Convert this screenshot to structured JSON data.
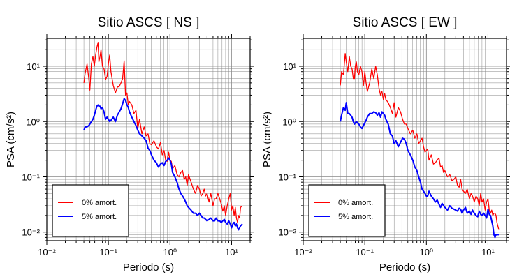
{
  "chart_data": [
    {
      "type": "line",
      "title": "Sitio ASCS [ NS ]",
      "xlabel": "Periodo (s)",
      "ylabel": "PSA (cm/s²)",
      "xscale": "log",
      "yscale": "log",
      "xlim": [
        0.01,
        20
      ],
      "ylim": [
        0.007,
        32
      ],
      "grid": true,
      "legend_position": "bottom-left",
      "xticks": [
        {
          "value": 0.01,
          "label": "10⁻²"
        },
        {
          "value": 0.1,
          "label": "10⁻¹"
        },
        {
          "value": 1,
          "label": "10⁰"
        },
        {
          "value": 10,
          "label": "10¹"
        }
      ],
      "yticks": [
        {
          "value": 0.01,
          "label": "10⁻²"
        },
        {
          "value": 0.1,
          "label": "10⁻¹"
        },
        {
          "value": 1,
          "label": "10⁰"
        },
        {
          "value": 10,
          "label": "10¹"
        }
      ],
      "series": [
        {
          "name": "0% amort.",
          "color": "#ff0000",
          "x": [
            0.04,
            0.042,
            0.045,
            0.048,
            0.05,
            0.053,
            0.056,
            0.059,
            0.062,
            0.065,
            0.068,
            0.07,
            0.073,
            0.076,
            0.08,
            0.085,
            0.09,
            0.095,
            0.1,
            0.105,
            0.11,
            0.12,
            0.13,
            0.14,
            0.15,
            0.16,
            0.17,
            0.18,
            0.19,
            0.2,
            0.21,
            0.22,
            0.24,
            0.26,
            0.28,
            0.3,
            0.32,
            0.35,
            0.38,
            0.41,
            0.44,
            0.47,
            0.5,
            0.55,
            0.6,
            0.65,
            0.7,
            0.75,
            0.8,
            0.85,
            0.9,
            0.95,
            1.0,
            1.05,
            1.1,
            1.2,
            1.3,
            1.4,
            1.5,
            1.6,
            1.7,
            1.8,
            1.9,
            2.0,
            2.2,
            2.4,
            2.6,
            2.8,
            3.0,
            3.2,
            3.4,
            3.6,
            3.8,
            4.0,
            4.3,
            4.6,
            5.0,
            5.3,
            5.6,
            6.0,
            6.4,
            6.8,
            7.2,
            7.6,
            8.0,
            8.5,
            9.0,
            9.5,
            10,
            10.5,
            11,
            11.5,
            12,
            12.5,
            13,
            13.5,
            14,
            15
          ],
          "y": [
            5,
            7.5,
            11,
            6,
            3.7,
            11,
            15,
            10,
            16,
            22,
            27,
            12,
            15,
            20,
            10,
            9,
            5.8,
            6.5,
            11,
            16,
            8,
            4.5,
            3.3,
            4.2,
            4.3,
            5,
            6,
            12.5,
            3,
            3.3,
            2,
            2.3,
            2,
            1.4,
            1.6,
            0.75,
            1.1,
            0.6,
            0.8,
            0.55,
            0.6,
            0.4,
            0.38,
            0.45,
            0.35,
            0.32,
            0.42,
            0.25,
            0.3,
            0.2,
            0.19,
            0.28,
            0.2,
            0.19,
            0.14,
            0.16,
            0.11,
            0.1,
            0.12,
            0.13,
            0.09,
            0.1,
            0.07,
            0.11,
            0.08,
            0.06,
            0.05,
            0.07,
            0.06,
            0.045,
            0.05,
            0.06,
            0.045,
            0.05,
            0.035,
            0.05,
            0.03,
            0.04,
            0.04,
            0.05,
            0.04,
            0.032,
            0.024,
            0.03,
            0.02,
            0.03,
            0.04,
            0.05,
            0.025,
            0.03,
            0.02,
            0.028,
            0.018,
            0.015,
            0.02,
            0.018,
            0.028,
            0.03
          ]
        },
        {
          "name": "5% amort.",
          "color": "#0000ff",
          "x": [
            0.04,
            0.042,
            0.045,
            0.048,
            0.05,
            0.053,
            0.056,
            0.059,
            0.062,
            0.065,
            0.068,
            0.07,
            0.073,
            0.076,
            0.08,
            0.085,
            0.09,
            0.095,
            0.1,
            0.105,
            0.11,
            0.12,
            0.13,
            0.14,
            0.15,
            0.16,
            0.17,
            0.18,
            0.19,
            0.2,
            0.21,
            0.22,
            0.24,
            0.26,
            0.28,
            0.3,
            0.32,
            0.35,
            0.38,
            0.41,
            0.44,
            0.47,
            0.5,
            0.55,
            0.6,
            0.65,
            0.7,
            0.75,
            0.8,
            0.85,
            0.9,
            0.95,
            1.0,
            1.05,
            1.1,
            1.2,
            1.3,
            1.4,
            1.5,
            1.6,
            1.7,
            1.8,
            1.9,
            2.0,
            2.2,
            2.4,
            2.6,
            2.8,
            3.0,
            3.2,
            3.4,
            3.6,
            3.8,
            4.0,
            4.3,
            4.6,
            5.0,
            5.3,
            5.6,
            6.0,
            6.4,
            6.8,
            7.2,
            7.6,
            8.0,
            8.5,
            9.0,
            9.5,
            10,
            10.5,
            11,
            11.5,
            12,
            12.5,
            13,
            13.5,
            14,
            15
          ],
          "y": [
            0.7,
            0.8,
            0.8,
            0.85,
            0.9,
            1.0,
            1.1,
            1.3,
            1.6,
            1.9,
            2.0,
            1.9,
            1.9,
            1.7,
            1.8,
            1.5,
            1.1,
            1.2,
            1.1,
            1.0,
            1.05,
            1.2,
            1.0,
            1.3,
            1.5,
            1.7,
            2.1,
            2.6,
            2.4,
            2.0,
            1.8,
            1.5,
            1.2,
            1.0,
            0.85,
            0.7,
            0.6,
            0.55,
            0.5,
            0.45,
            0.33,
            0.3,
            0.25,
            0.2,
            0.18,
            0.15,
            0.17,
            0.18,
            0.16,
            0.19,
            0.2,
            0.22,
            0.2,
            0.17,
            0.12,
            0.1,
            0.08,
            0.06,
            0.05,
            0.045,
            0.04,
            0.035,
            0.03,
            0.028,
            0.025,
            0.022,
            0.022,
            0.02,
            0.022,
            0.02,
            0.018,
            0.018,
            0.017,
            0.016,
            0.017,
            0.018,
            0.016,
            0.016,
            0.018,
            0.016,
            0.016,
            0.015,
            0.016,
            0.017,
            0.015,
            0.014,
            0.016,
            0.014,
            0.012,
            0.014,
            0.015,
            0.013,
            0.014,
            0.012,
            0.011,
            0.012,
            0.013,
            0.014
          ]
        }
      ]
    },
    {
      "type": "line",
      "title": "Sitio ASCS [ EW ]",
      "xlabel": "Periodo (s)",
      "ylabel": "PSA (cm/s²)",
      "xscale": "log",
      "yscale": "log",
      "xlim": [
        0.01,
        20
      ],
      "ylim": [
        0.007,
        32
      ],
      "grid": true,
      "legend_position": "bottom-left",
      "xticks": [
        {
          "value": 0.01,
          "label": "10⁻²"
        },
        {
          "value": 0.1,
          "label": "10⁻¹"
        },
        {
          "value": 1,
          "label": "10⁰"
        },
        {
          "value": 10,
          "label": "10¹"
        }
      ],
      "yticks": [
        {
          "value": 0.01,
          "label": "10⁻²"
        },
        {
          "value": 0.1,
          "label": "10⁻¹"
        },
        {
          "value": 1,
          "label": "10⁰"
        },
        {
          "value": 10,
          "label": "10¹"
        }
      ],
      "series": [
        {
          "name": "0% amort.",
          "color": "#ff0000",
          "x": [
            0.04,
            0.042,
            0.045,
            0.048,
            0.05,
            0.053,
            0.056,
            0.059,
            0.062,
            0.065,
            0.068,
            0.07,
            0.073,
            0.076,
            0.08,
            0.085,
            0.09,
            0.095,
            0.1,
            0.105,
            0.11,
            0.12,
            0.13,
            0.14,
            0.15,
            0.16,
            0.17,
            0.18,
            0.19,
            0.2,
            0.21,
            0.22,
            0.24,
            0.26,
            0.28,
            0.3,
            0.32,
            0.35,
            0.38,
            0.41,
            0.44,
            0.47,
            0.5,
            0.55,
            0.6,
            0.65,
            0.7,
            0.75,
            0.8,
            0.85,
            0.9,
            0.95,
            1.0,
            1.05,
            1.1,
            1.2,
            1.3,
            1.4,
            1.5,
            1.6,
            1.7,
            1.8,
            1.9,
            2.0,
            2.2,
            2.4,
            2.6,
            2.8,
            3.0,
            3.2,
            3.4,
            3.6,
            3.8,
            4.0,
            4.3,
            4.6,
            5.0,
            5.3,
            5.6,
            6.0,
            6.4,
            6.8,
            7.2,
            7.6,
            8.0,
            8.5,
            9.0,
            9.5,
            10,
            10.5,
            11,
            11.5,
            12,
            12.5,
            13,
            13.5,
            14,
            15
          ],
          "y": [
            4.5,
            8,
            7,
            17,
            12,
            8,
            15,
            10,
            9,
            6,
            6,
            10,
            12,
            8,
            7,
            10,
            8,
            4.5,
            8,
            5,
            3.5,
            5,
            9,
            6,
            10,
            7,
            4,
            3,
            3.5,
            2.5,
            3.2,
            2.5,
            2.2,
            1.8,
            1.4,
            2.2,
            1.2,
            1.8,
            1.5,
            1.1,
            0.9,
            0.9,
            0.75,
            0.6,
            0.7,
            0.5,
            0.6,
            0.4,
            0.45,
            0.5,
            0.35,
            0.28,
            0.3,
            0.32,
            0.2,
            0.25,
            0.17,
            0.18,
            0.2,
            0.22,
            0.15,
            0.16,
            0.12,
            0.13,
            0.1,
            0.11,
            0.085,
            0.09,
            0.1,
            0.07,
            0.065,
            0.09,
            0.06,
            0.055,
            0.05,
            0.06,
            0.04,
            0.05,
            0.045,
            0.035,
            0.045,
            0.04,
            0.03,
            0.05,
            0.035,
            0.04,
            0.025,
            0.035,
            0.04,
            0.025,
            0.022,
            0.025,
            0.02,
            0.022,
            0.022,
            0.02,
            0.015,
            0.011
          ]
        },
        {
          "name": "5% amort.",
          "color": "#0000ff",
          "x": [
            0.04,
            0.042,
            0.045,
            0.048,
            0.05,
            0.053,
            0.056,
            0.059,
            0.062,
            0.065,
            0.068,
            0.07,
            0.073,
            0.076,
            0.08,
            0.085,
            0.09,
            0.095,
            0.1,
            0.105,
            0.11,
            0.12,
            0.13,
            0.14,
            0.15,
            0.16,
            0.17,
            0.18,
            0.19,
            0.2,
            0.21,
            0.22,
            0.24,
            0.26,
            0.28,
            0.3,
            0.32,
            0.35,
            0.38,
            0.41,
            0.44,
            0.47,
            0.5,
            0.55,
            0.6,
            0.65,
            0.7,
            0.75,
            0.8,
            0.85,
            0.9,
            0.95,
            1.0,
            1.05,
            1.1,
            1.2,
            1.3,
            1.4,
            1.5,
            1.6,
            1.7,
            1.8,
            1.9,
            2.0,
            2.2,
            2.4,
            2.6,
            2.8,
            3.0,
            3.2,
            3.4,
            3.6,
            3.8,
            4.0,
            4.3,
            4.6,
            5.0,
            5.3,
            5.6,
            6.0,
            6.4,
            6.8,
            7.2,
            7.6,
            8.0,
            8.5,
            9.0,
            9.5,
            10,
            10.5,
            11,
            11.5,
            12,
            12.5,
            13,
            13.5,
            14,
            15
          ],
          "y": [
            1.0,
            1.3,
            1.8,
            1.6,
            2.2,
            1.4,
            1.4,
            1.3,
            1.2,
            1.0,
            0.9,
            0.95,
            1.0,
            0.95,
            0.9,
            0.8,
            0.75,
            0.85,
            0.95,
            1.05,
            1.2,
            1.4,
            1.4,
            1.5,
            1.45,
            1.3,
            1.45,
            1.2,
            1.5,
            1.4,
            1.3,
            1.1,
            0.9,
            0.6,
            0.55,
            0.4,
            0.45,
            0.35,
            0.42,
            0.5,
            0.48,
            0.4,
            0.3,
            0.25,
            0.2,
            0.15,
            0.13,
            0.1,
            0.08,
            0.06,
            0.055,
            0.05,
            0.045,
            0.045,
            0.055,
            0.045,
            0.04,
            0.035,
            0.038,
            0.032,
            0.028,
            0.033,
            0.03,
            0.028,
            0.025,
            0.03,
            0.027,
            0.026,
            0.025,
            0.024,
            0.027,
            0.026,
            0.022,
            0.025,
            0.028,
            0.022,
            0.024,
            0.021,
            0.025,
            0.022,
            0.02,
            0.019,
            0.024,
            0.021,
            0.02,
            0.022,
            0.02,
            0.018,
            0.026,
            0.021,
            0.02,
            0.016,
            0.013,
            0.009,
            0.008,
            0.009,
            0.009,
            0.009
          ]
        }
      ]
    }
  ]
}
